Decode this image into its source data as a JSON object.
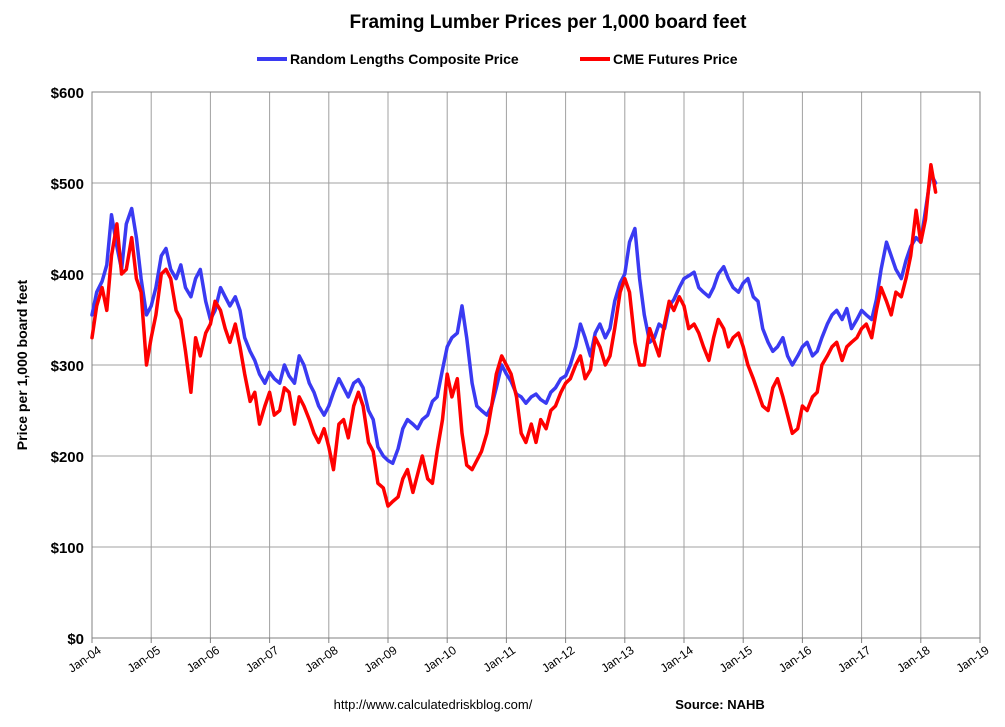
{
  "chart_data": {
    "type": "line",
    "title": "Framing Lumber Prices per 1,000 board feet",
    "xlabel": "",
    "ylabel": "Price per 1,000 board feet",
    "ylim": [
      0,
      600
    ],
    "xlim": [
      "Jan-04",
      "Jan-19"
    ],
    "y_ticks": [
      "$0",
      "$100",
      "$200",
      "$300",
      "$400",
      "$500",
      "$600"
    ],
    "x_ticks": [
      "Jan-04",
      "Jan-05",
      "Jan-06",
      "Jan-07",
      "Jan-08",
      "Jan-09",
      "Jan-10",
      "Jan-11",
      "Jan-12",
      "Jan-13",
      "Jan-14",
      "Jan-15",
      "Jan-16",
      "Jan-17",
      "Jan-18",
      "Jan-19"
    ],
    "grid": true,
    "legend_position": "top",
    "series": [
      {
        "name": "Random Lengths Composite Price",
        "color": "#3a3af2",
        "x": [
          2004.0,
          2004.08,
          2004.17,
          2004.25,
          2004.33,
          2004.42,
          2004.5,
          2004.58,
          2004.67,
          2004.75,
          2004.83,
          2004.92,
          2005.0,
          2005.08,
          2005.17,
          2005.25,
          2005.33,
          2005.42,
          2005.5,
          2005.58,
          2005.67,
          2005.75,
          2005.83,
          2005.92,
          2006.0,
          2006.08,
          2006.17,
          2006.25,
          2006.33,
          2006.42,
          2006.5,
          2006.58,
          2006.67,
          2006.75,
          2006.83,
          2006.92,
          2007.0,
          2007.08,
          2007.17,
          2007.25,
          2007.33,
          2007.42,
          2007.5,
          2007.58,
          2007.67,
          2007.75,
          2007.83,
          2007.92,
          2008.0,
          2008.08,
          2008.17,
          2008.25,
          2008.33,
          2008.42,
          2008.5,
          2008.58,
          2008.67,
          2008.75,
          2008.83,
          2008.92,
          2009.0,
          2009.08,
          2009.17,
          2009.25,
          2009.33,
          2009.42,
          2009.5,
          2009.58,
          2009.67,
          2009.75,
          2009.83,
          2009.92,
          2010.0,
          2010.08,
          2010.17,
          2010.25,
          2010.33,
          2010.42,
          2010.5,
          2010.58,
          2010.67,
          2010.75,
          2010.83,
          2010.92,
          2011.0,
          2011.08,
          2011.17,
          2011.25,
          2011.33,
          2011.42,
          2011.5,
          2011.58,
          2011.67,
          2011.75,
          2011.83,
          2011.92,
          2012.0,
          2012.08,
          2012.17,
          2012.25,
          2012.33,
          2012.42,
          2012.5,
          2012.58,
          2012.67,
          2012.75,
          2012.83,
          2012.92,
          2013.0,
          2013.08,
          2013.17,
          2013.25,
          2013.33,
          2013.42,
          2013.5,
          2013.58,
          2013.67,
          2013.75,
          2013.83,
          2013.92,
          2014.0,
          2014.08,
          2014.17,
          2014.25,
          2014.33,
          2014.42,
          2014.5,
          2014.58,
          2014.67,
          2014.75,
          2014.83,
          2014.92,
          2015.0,
          2015.08,
          2015.17,
          2015.25,
          2015.33,
          2015.42,
          2015.5,
          2015.58,
          2015.67,
          2015.75,
          2015.83,
          2015.92,
          2016.0,
          2016.08,
          2016.17,
          2016.25,
          2016.33,
          2016.42,
          2016.5,
          2016.58,
          2016.67,
          2016.75,
          2016.83,
          2016.92,
          2017.0,
          2017.08,
          2017.17,
          2017.25,
          2017.33,
          2017.42,
          2017.5,
          2017.58,
          2017.67,
          2017.75,
          2017.83,
          2017.92,
          2018.0,
          2018.08,
          2018.17,
          2018.25
        ],
        "values": [
          355,
          380,
          392,
          410,
          465,
          430,
          405,
          455,
          472,
          440,
          395,
          355,
          365,
          385,
          420,
          428,
          405,
          395,
          410,
          385,
          375,
          395,
          405,
          370,
          350,
          360,
          385,
          375,
          365,
          375,
          360,
          330,
          315,
          305,
          290,
          280,
          292,
          285,
          280,
          300,
          288,
          280,
          310,
          300,
          280,
          270,
          255,
          245,
          255,
          270,
          285,
          275,
          265,
          280,
          284,
          275,
          250,
          240,
          210,
          200,
          195,
          192,
          208,
          230,
          240,
          235,
          230,
          240,
          245,
          260,
          265,
          295,
          320,
          330,
          335,
          365,
          330,
          280,
          255,
          250,
          245,
          255,
          275,
          300,
          290,
          282,
          268,
          265,
          258,
          265,
          268,
          262,
          258,
          270,
          275,
          285,
          288,
          300,
          320,
          345,
          330,
          310,
          335,
          345,
          330,
          340,
          370,
          390,
          400,
          435,
          450,
          395,
          355,
          325,
          330,
          345,
          340,
          365,
          372,
          385,
          395,
          398,
          402,
          385,
          380,
          375,
          385,
          400,
          408,
          395,
          385,
          380,
          390,
          395,
          375,
          370,
          340,
          325,
          315,
          320,
          330,
          310,
          300,
          310,
          320,
          325,
          310,
          315,
          330,
          345,
          355,
          360,
          350,
          362,
          340,
          350,
          360,
          355,
          350,
          372,
          405,
          435,
          420,
          405,
          395,
          415,
          430,
          440,
          435,
          470,
          510,
          500
        ]
      },
      {
        "name": "CME Futures Price",
        "color": "#ff0000",
        "x": [
          2004.0,
          2004.08,
          2004.17,
          2004.25,
          2004.33,
          2004.42,
          2004.5,
          2004.58,
          2004.67,
          2004.75,
          2004.83,
          2004.92,
          2005.0,
          2005.08,
          2005.17,
          2005.25,
          2005.33,
          2005.42,
          2005.5,
          2005.58,
          2005.67,
          2005.75,
          2005.83,
          2005.92,
          2006.0,
          2006.08,
          2006.17,
          2006.25,
          2006.33,
          2006.42,
          2006.5,
          2006.58,
          2006.67,
          2006.75,
          2006.83,
          2006.92,
          2007.0,
          2007.08,
          2007.17,
          2007.25,
          2007.33,
          2007.42,
          2007.5,
          2007.58,
          2007.67,
          2007.75,
          2007.83,
          2007.92,
          2008.0,
          2008.08,
          2008.17,
          2008.25,
          2008.33,
          2008.42,
          2008.5,
          2008.58,
          2008.67,
          2008.75,
          2008.83,
          2008.92,
          2009.0,
          2009.08,
          2009.17,
          2009.25,
          2009.33,
          2009.42,
          2009.5,
          2009.58,
          2009.67,
          2009.75,
          2009.83,
          2009.92,
          2010.0,
          2010.08,
          2010.17,
          2010.25,
          2010.33,
          2010.42,
          2010.5,
          2010.58,
          2010.67,
          2010.75,
          2010.83,
          2010.92,
          2011.0,
          2011.08,
          2011.17,
          2011.25,
          2011.33,
          2011.42,
          2011.5,
          2011.58,
          2011.67,
          2011.75,
          2011.83,
          2011.92,
          2012.0,
          2012.08,
          2012.17,
          2012.25,
          2012.33,
          2012.42,
          2012.5,
          2012.58,
          2012.67,
          2012.75,
          2012.83,
          2012.92,
          2013.0,
          2013.08,
          2013.17,
          2013.25,
          2013.33,
          2013.42,
          2013.5,
          2013.58,
          2013.67,
          2013.75,
          2013.83,
          2013.92,
          2014.0,
          2014.08,
          2014.17,
          2014.25,
          2014.33,
          2014.42,
          2014.5,
          2014.58,
          2014.67,
          2014.75,
          2014.83,
          2014.92,
          2015.0,
          2015.08,
          2015.17,
          2015.25,
          2015.33,
          2015.42,
          2015.5,
          2015.58,
          2015.67,
          2015.75,
          2015.83,
          2015.92,
          2016.0,
          2016.08,
          2016.17,
          2016.25,
          2016.33,
          2016.42,
          2016.5,
          2016.58,
          2016.67,
          2016.75,
          2016.83,
          2016.92,
          2017.0,
          2017.08,
          2017.17,
          2017.25,
          2017.33,
          2017.42,
          2017.5,
          2017.58,
          2017.67,
          2017.75,
          2017.83,
          2017.92,
          2018.0,
          2018.08,
          2018.17,
          2018.25
        ],
        "values": [
          330,
          365,
          385,
          360,
          420,
          455,
          400,
          405,
          440,
          395,
          380,
          300,
          330,
          355,
          400,
          405,
          395,
          360,
          350,
          315,
          270,
          330,
          310,
          335,
          345,
          370,
          360,
          340,
          325,
          345,
          320,
          290,
          260,
          270,
          235,
          255,
          270,
          245,
          250,
          275,
          270,
          235,
          265,
          255,
          240,
          225,
          215,
          230,
          210,
          185,
          235,
          240,
          220,
          255,
          270,
          255,
          215,
          205,
          170,
          165,
          145,
          150,
          155,
          175,
          185,
          160,
          180,
          200,
          175,
          170,
          205,
          240,
          290,
          265,
          285,
          225,
          190,
          185,
          195,
          205,
          225,
          255,
          290,
          310,
          300,
          290,
          265,
          225,
          215,
          235,
          215,
          240,
          230,
          250,
          255,
          270,
          280,
          285,
          300,
          310,
          285,
          295,
          330,
          320,
          300,
          310,
          340,
          380,
          395,
          380,
          325,
          300,
          300,
          340,
          325,
          310,
          345,
          370,
          360,
          375,
          365,
          340,
          345,
          335,
          320,
          305,
          330,
          350,
          340,
          320,
          330,
          335,
          320,
          300,
          285,
          270,
          255,
          250,
          275,
          285,
          265,
          245,
          225,
          230,
          255,
          250,
          265,
          270,
          300,
          310,
          320,
          325,
          305,
          320,
          325,
          330,
          340,
          345,
          330,
          360,
          385,
          370,
          355,
          380,
          375,
          395,
          420,
          470,
          435,
          460,
          520,
          490
        ]
      }
    ]
  },
  "footer": {
    "url": "http://www.calculatedriskblog.com/",
    "source": "Source: NAHB"
  }
}
